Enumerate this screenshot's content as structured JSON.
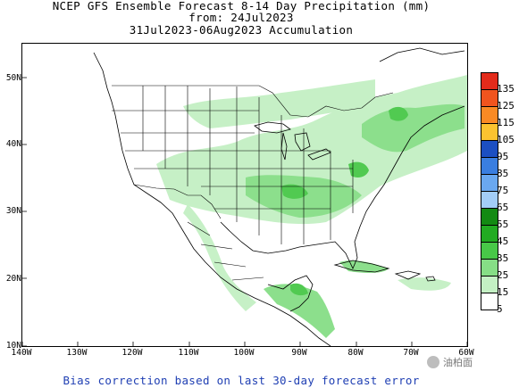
{
  "title": {
    "line1": "NCEP GFS Ensemble Forecast 8-14 Day Precipitation (mm)",
    "line2": "from: 24Jul2023",
    "line3": "31Jul2023-06Aug2023 Accumulation"
  },
  "axes": {
    "lat_labels": [
      "50N",
      "40N",
      "30N",
      "20N",
      "10N"
    ],
    "lon_labels": [
      "140W",
      "130W",
      "120W",
      "110W",
      "100W",
      "90W",
      "80W",
      "70W",
      "60W"
    ]
  },
  "legend": {
    "levels": [
      {
        "label": "135",
        "color": "#e32b1b"
      },
      {
        "label": "125",
        "color": "#f0541e"
      },
      {
        "label": "115",
        "color": "#f98a24"
      },
      {
        "label": "105",
        "color": "#fbc330"
      },
      {
        "label": "95",
        "color": "#1c4fc2"
      },
      {
        "label": "85",
        "color": "#3a7ee0"
      },
      {
        "label": "75",
        "color": "#6aa8f0"
      },
      {
        "label": "65",
        "color": "#a3cdf7"
      },
      {
        "label": "55",
        "color": "#138a13"
      },
      {
        "label": "45",
        "color": "#22ab22"
      },
      {
        "label": "35",
        "color": "#48c848"
      },
      {
        "label": "25",
        "color": "#86de86"
      },
      {
        "label": "15",
        "color": "#c4f0c4"
      },
      {
        "label": "5",
        "color": "#ffffff"
      }
    ]
  },
  "footer": "Bias correction based on last 30-day forecast error",
  "watermark": "油柏面"
}
